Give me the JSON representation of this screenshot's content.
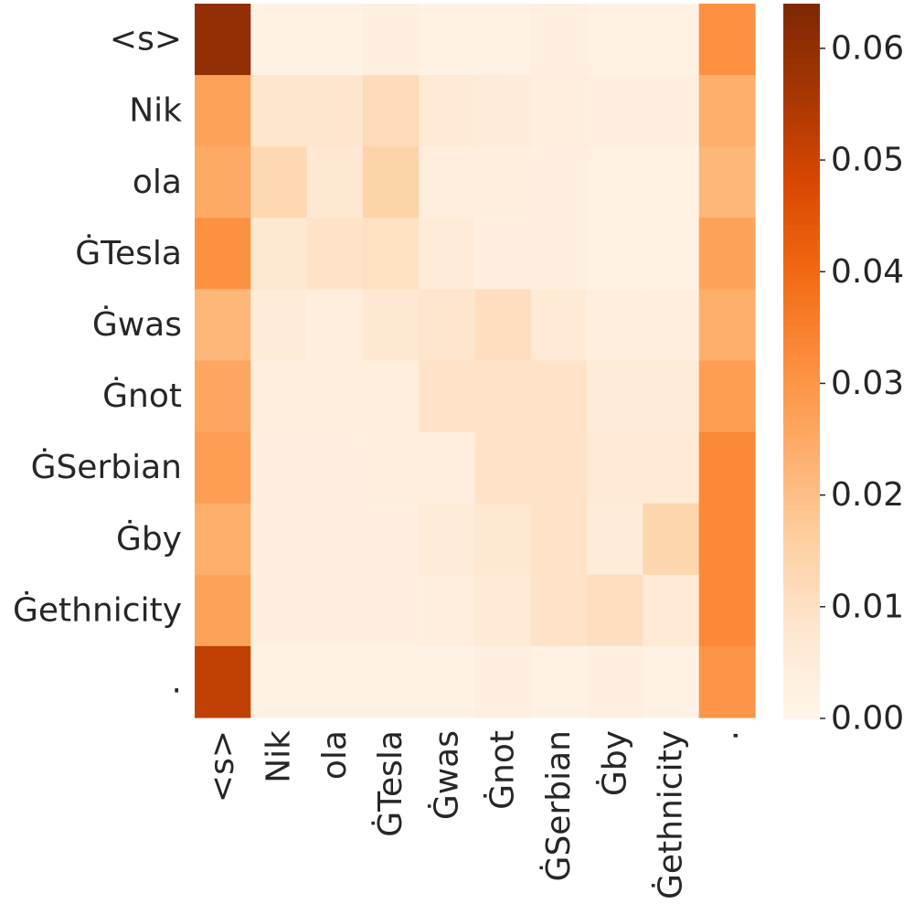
{
  "chart_data": {
    "type": "heatmap",
    "x_labels": [
      "<s>",
      "Nik",
      "ola",
      "ĠTesla",
      "Ġwas",
      "Ġnot",
      "ĠSerbian",
      "Ġby",
      "Ġethnicity",
      "."
    ],
    "y_labels": [
      "<s>",
      "Nik",
      "ola",
      "ĠTesla",
      "Ġwas",
      "Ġnot",
      "ĠSerbian",
      "Ġby",
      "Ġethnicity",
      "."
    ],
    "values": [
      [
        0.06,
        0.002,
        0.002,
        0.003,
        0.002,
        0.002,
        0.003,
        0.002,
        0.002,
        0.031
      ],
      [
        0.027,
        0.008,
        0.008,
        0.012,
        0.006,
        0.005,
        0.004,
        0.003,
        0.003,
        0.024
      ],
      [
        0.025,
        0.013,
        0.007,
        0.015,
        0.004,
        0.004,
        0.003,
        0.002,
        0.002,
        0.022
      ],
      [
        0.031,
        0.007,
        0.009,
        0.01,
        0.005,
        0.003,
        0.003,
        0.002,
        0.002,
        0.027
      ],
      [
        0.022,
        0.005,
        0.004,
        0.007,
        0.008,
        0.011,
        0.006,
        0.004,
        0.004,
        0.024
      ],
      [
        0.026,
        0.004,
        0.004,
        0.004,
        0.009,
        0.009,
        0.009,
        0.005,
        0.005,
        0.028
      ],
      [
        0.028,
        0.003,
        0.003,
        0.004,
        0.004,
        0.009,
        0.009,
        0.006,
        0.006,
        0.033
      ],
      [
        0.024,
        0.003,
        0.003,
        0.003,
        0.005,
        0.007,
        0.009,
        0.005,
        0.014,
        0.033
      ],
      [
        0.027,
        0.003,
        0.003,
        0.003,
        0.004,
        0.006,
        0.009,
        0.011,
        0.006,
        0.033
      ],
      [
        0.052,
        0.002,
        0.002,
        0.002,
        0.002,
        0.003,
        0.002,
        0.003,
        0.002,
        0.03
      ]
    ],
    "colormap": "Oranges",
    "vmin": 0.0,
    "vmax": 0.064,
    "colorbar": {
      "ticks": [
        0.0,
        0.01,
        0.02,
        0.03,
        0.04,
        0.05,
        0.06
      ],
      "tick_labels": [
        "0.00",
        "0.01",
        "0.02",
        "0.03",
        "0.04",
        "0.05",
        "0.06"
      ]
    },
    "text_color": "#262626",
    "grid": false
  }
}
